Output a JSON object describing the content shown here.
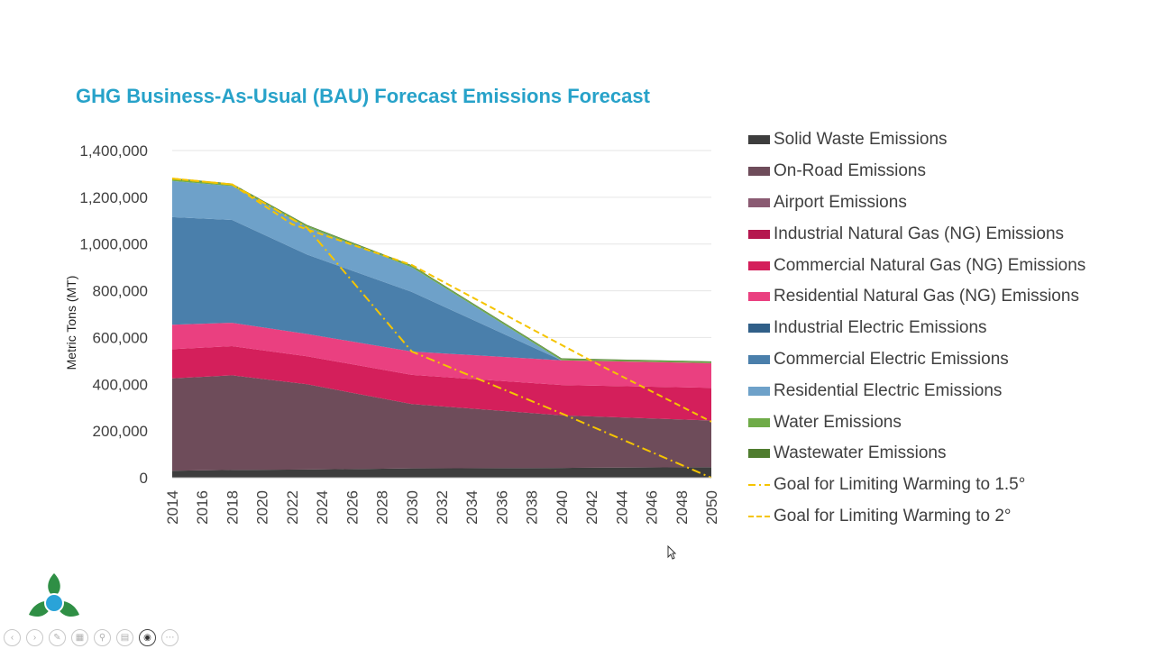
{
  "chart_data": {
    "type": "area",
    "title": "GHG Business-As-Usual (BAU) Forecast Emissions Forecast",
    "ylabel": "Metric Tons (MT)",
    "xlabel": "",
    "ylim": [
      0,
      1400000
    ],
    "yticks": [
      0,
      200000,
      400000,
      600000,
      800000,
      1000000,
      1200000,
      1400000
    ],
    "ytick_labels": [
      "0",
      "200,000",
      "400,000",
      "600,000",
      "800,000",
      "1,000,000",
      "1,200,000",
      "1,400,000"
    ],
    "x_tick_labels": [
      "2014",
      "2016",
      "2018",
      "2020",
      "2022",
      "2024",
      "2026",
      "2028",
      "2030",
      "2032",
      "2034",
      "2036",
      "2038",
      "2040",
      "2042",
      "2044",
      "2046",
      "2048",
      "2050"
    ],
    "x": [
      2014,
      2018,
      2023,
      2030,
      2040,
      2050
    ],
    "stacked": true,
    "series": [
      {
        "name": "Solid Waste Emissions",
        "color": "#3d3d3d",
        "values": [
          30000,
          33000,
          35000,
          40000,
          42000,
          45000
        ]
      },
      {
        "name": "On-Road Emissions",
        "color": "#6e4c5a",
        "values": [
          395000,
          405000,
          365000,
          275000,
          225000,
          200000
        ]
      },
      {
        "name": "Airport Emissions",
        "color": "#8a5a72",
        "values": [
          0,
          0,
          0,
          0,
          0,
          0
        ]
      },
      {
        "name": "Industrial Natural Gas (NG) Emissions",
        "color": "#b5174e",
        "values": [
          0,
          0,
          0,
          0,
          0,
          0
        ]
      },
      {
        "name": "Commercial Natural Gas (NG) Emissions",
        "color": "#d41f5b",
        "values": [
          125000,
          125000,
          120000,
          125000,
          130000,
          140000
        ]
      },
      {
        "name": "Residential Natural Gas (NG) Emissions",
        "color": "#ea4080",
        "values": [
          105000,
          100000,
          95000,
          100000,
          105000,
          105000
        ]
      },
      {
        "name": "Industrial Electric Emissions",
        "color": "#305f88",
        "values": [
          0,
          0,
          0,
          0,
          0,
          0
        ]
      },
      {
        "name": "Commercial Electric Emissions",
        "color": "#4a7fab",
        "values": [
          460000,
          440000,
          340000,
          255000,
          0,
          0
        ]
      },
      {
        "name": "Residential Electric Emissions",
        "color": "#6ea1c9",
        "values": [
          155000,
          145000,
          118000,
          105000,
          0,
          0
        ]
      },
      {
        "name": "Water Emissions",
        "color": "#6fab48",
        "values": [
          8000,
          7000,
          6000,
          6000,
          6000,
          5000
        ]
      },
      {
        "name": "Wastewater Emissions",
        "color": "#4f7c2e",
        "values": [
          4000,
          4000,
          3000,
          3000,
          3000,
          3000
        ]
      }
    ],
    "goal_lines": [
      {
        "name": "Goal for Limiting Warming to 1.5°",
        "style": "dashdot",
        "color": "#f5c400",
        "x": [
          2014,
          2018,
          2023,
          2030,
          2040,
          2050
        ],
        "values": [
          1280000,
          1255000,
          1070000,
          540000,
          275000,
          0
        ]
      },
      {
        "name": "Goal for Limiting Warming to 2°",
        "style": "dashed",
        "color": "#f5c400",
        "x": [
          2014,
          2018,
          2022,
          2030,
          2042,
          2050
        ],
        "values": [
          1280000,
          1255000,
          1085000,
          910000,
          500000,
          240000
        ]
      }
    ],
    "legend_position": "right"
  }
}
